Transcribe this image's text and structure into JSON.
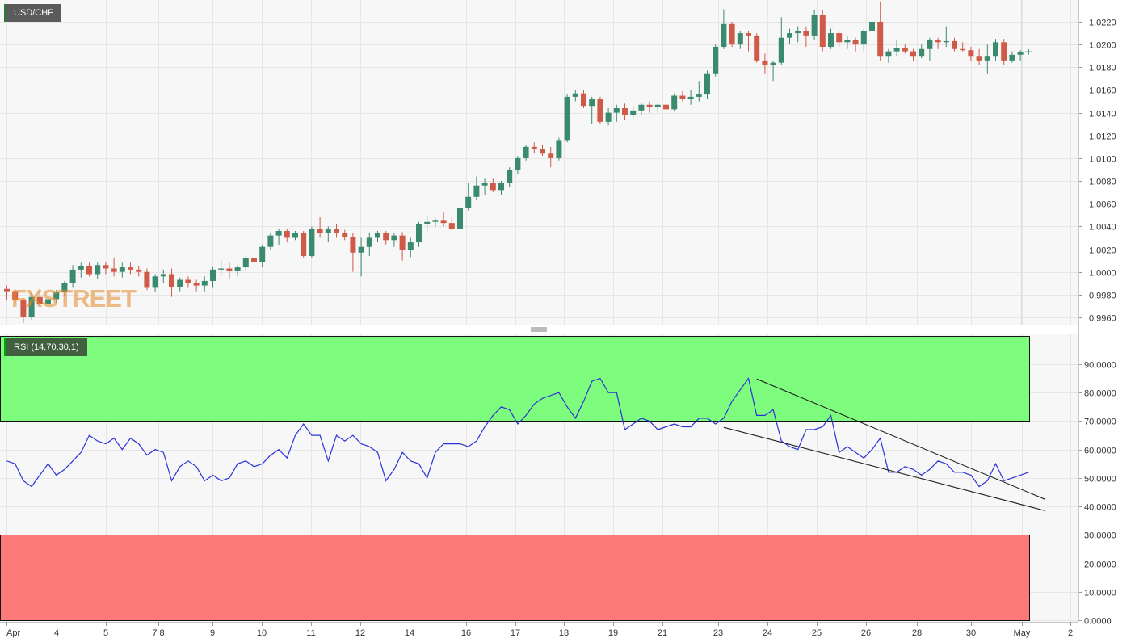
{
  "symbol": "USD/CHF",
  "watermark": "FXSTREET",
  "rsi_label": "RSI (14,70,30,1)",
  "colors": {
    "bull": "#3a8a6f",
    "bear": "#d05a48",
    "rsi_line": "#2b33d6",
    "overbought_zone": "#7dfc7d",
    "oversold_zone": "#fc7a7a",
    "trendline": "#222222",
    "grid": "#e6e6e6"
  },
  "chart_data": [
    {
      "type": "candlestick",
      "title": "USD/CHF",
      "ylim": [
        0.995,
        1.0238
      ],
      "y_ticks": [
        "0.9960",
        "0.9980",
        "1.0000",
        "1.0020",
        "1.0040",
        "1.0060",
        "1.0080",
        "1.0100",
        "1.0120",
        "1.0140",
        "1.0160",
        "1.0180",
        "1.0200",
        "1.0220"
      ],
      "x_ticks": [
        "Apr",
        "4",
        "5",
        "7 8",
        "9",
        "10",
        "11",
        "12",
        "14",
        "16",
        "17",
        "18",
        "19",
        "21",
        "23",
        "24",
        "25",
        "26",
        "28",
        "30",
        "May",
        "2"
      ],
      "grid": true,
      "ohlc": [
        [
          0.9985,
          0.9988,
          0.9975,
          0.9983
        ],
        [
          0.9983,
          0.9985,
          0.9972,
          0.9975
        ],
        [
          0.9975,
          0.9977,
          0.9955,
          0.996
        ],
        [
          0.996,
          0.9982,
          0.9958,
          0.9978
        ],
        [
          0.9978,
          0.9986,
          0.997,
          0.9972
        ],
        [
          0.9972,
          0.998,
          0.9968,
          0.9976
        ],
        [
          0.9976,
          0.9984,
          0.9973,
          0.9982
        ],
        [
          0.9982,
          0.9992,
          0.9978,
          0.999
        ],
        [
          0.999,
          1.0006,
          0.9986,
          1.0002
        ],
        [
          1.0002,
          1.0008,
          0.9995,
          1.0005
        ],
        [
          1.0005,
          1.0008,
          0.9996,
          0.9998
        ],
        [
          0.9998,
          1.0008,
          0.9994,
          1.0006
        ],
        [
          1.0006,
          1.0009,
          0.9998,
          1.0003
        ],
        [
          1.0003,
          1.0012,
          0.9996,
          1.0
        ],
        [
          1.0,
          1.0008,
          0.9995,
          1.0004
        ],
        [
          1.0004,
          1.0008,
          0.9998,
          1.0002
        ],
        [
          1.0002,
          1.0005,
          0.9996,
          1.0
        ],
        [
          1.0,
          1.0003,
          0.9984,
          0.9986
        ],
        [
          0.9986,
          0.9998,
          0.9982,
          0.9996
        ],
        [
          0.9996,
          1.0002,
          0.999,
          0.9998
        ],
        [
          0.9998,
          1.0003,
          0.9978,
          0.9987
        ],
        [
          0.9987,
          0.9995,
          0.9983,
          0.9993
        ],
        [
          0.9993,
          0.9996,
          0.9986,
          0.999
        ],
        [
          0.999,
          0.9993,
          0.9983,
          0.9988
        ],
        [
          0.9988,
          0.9996,
          0.9983,
          0.9992
        ],
        [
          0.9992,
          1.0004,
          0.9986,
          1.0002
        ],
        [
          1.0002,
          1.001,
          0.9997,
          1.0003
        ],
        [
          1.0003,
          1.0008,
          0.9994,
          1.0001
        ],
        [
          1.0001,
          1.0006,
          0.9996,
          1.0004
        ],
        [
          1.0004,
          1.0014,
          1.0001,
          1.0012
        ],
        [
          1.0012,
          1.002,
          1.0006,
          1.0009
        ],
        [
          1.0009,
          1.0024,
          1.0004,
          1.0022
        ],
        [
          1.0022,
          1.0034,
          1.0019,
          1.0032
        ],
        [
          1.0032,
          1.0038,
          1.0024,
          1.0036
        ],
        [
          1.0036,
          1.0038,
          1.0026,
          1.003
        ],
        [
          1.003,
          1.0036,
          1.0028,
          1.0034
        ],
        [
          1.0034,
          1.0036,
          1.0012,
          1.0014
        ],
        [
          1.0014,
          1.004,
          1.0012,
          1.0038
        ],
        [
          1.0038,
          1.0048,
          1.003,
          1.0034
        ],
        [
          1.0034,
          1.004,
          1.0026,
          1.0038
        ],
        [
          1.0038,
          1.0042,
          1.003,
          1.0034
        ],
        [
          1.0034,
          1.0037,
          1.0028,
          1.0031
        ],
        [
          1.0031,
          1.0034,
          1.0,
          1.0017
        ],
        [
          1.0017,
          1.003,
          0.9996,
          1.0022
        ],
        [
          1.0022,
          1.0034,
          1.0014,
          1.003
        ],
        [
          1.003,
          1.0036,
          1.0026,
          1.0034
        ],
        [
          1.0034,
          1.0036,
          1.0024,
          1.0028
        ],
        [
          1.0028,
          1.0034,
          1.0022,
          1.0032
        ],
        [
          1.0032,
          1.0035,
          1.001,
          1.0019
        ],
        [
          1.0019,
          1.003,
          1.0013,
          1.0026
        ],
        [
          1.0026,
          1.0044,
          1.0022,
          1.0042
        ],
        [
          1.0042,
          1.005,
          1.0036,
          1.0044
        ],
        [
          1.0044,
          1.0047,
          1.004,
          1.0045
        ],
        [
          1.0045,
          1.0053,
          1.004,
          1.0043
        ],
        [
          1.0043,
          1.0048,
          1.0036,
          1.0038
        ],
        [
          1.0038,
          1.0058,
          1.0035,
          1.0056
        ],
        [
          1.0056,
          1.0078,
          1.0054,
          1.0066
        ],
        [
          1.0066,
          1.0084,
          1.0063,
          1.0076
        ],
        [
          1.0076,
          1.0082,
          1.0068,
          1.0078
        ],
        [
          1.0078,
          1.0082,
          1.007,
          1.0072
        ],
        [
          1.0072,
          1.008,
          1.0068,
          1.0078
        ],
        [
          1.0078,
          1.0092,
          1.0075,
          1.009
        ],
        [
          1.009,
          1.0102,
          1.0086,
          1.01
        ],
        [
          1.01,
          1.0112,
          1.0098,
          1.011
        ],
        [
          1.011,
          1.0114,
          1.0104,
          1.0108
        ],
        [
          1.0108,
          1.0112,
          1.0102,
          1.0104
        ],
        [
          1.0104,
          1.011,
          1.0092,
          1.01
        ],
        [
          1.01,
          1.0118,
          1.0098,
          1.0116
        ],
        [
          1.0116,
          1.0156,
          1.0114,
          1.0154
        ],
        [
          1.0154,
          1.016,
          1.015,
          1.0157
        ],
        [
          1.0157,
          1.016,
          1.0144,
          1.0146
        ],
        [
          1.0146,
          1.0154,
          1.013,
          1.0152
        ],
        [
          1.0152,
          1.0154,
          1.013,
          1.0132
        ],
        [
          1.0132,
          1.0144,
          1.0129,
          1.014
        ],
        [
          1.014,
          1.0147,
          1.0132,
          1.0144
        ],
        [
          1.0144,
          1.0148,
          1.0134,
          1.0138
        ],
        [
          1.0138,
          1.0146,
          1.0135,
          1.0142
        ],
        [
          1.0142,
          1.0149,
          1.0138,
          1.0147
        ],
        [
          1.0147,
          1.015,
          1.014,
          1.0145
        ],
        [
          1.0145,
          1.0149,
          1.014,
          1.0147
        ],
        [
          1.0147,
          1.015,
          1.0141,
          1.0143
        ],
        [
          1.0143,
          1.0157,
          1.0141,
          1.0155
        ],
        [
          1.0155,
          1.0159,
          1.015,
          1.0152
        ],
        [
          1.0152,
          1.016,
          1.0147,
          1.0154
        ],
        [
          1.0154,
          1.0168,
          1.015,
          1.0156
        ],
        [
          1.0156,
          1.0177,
          1.0152,
          1.0174
        ],
        [
          1.0174,
          1.02,
          1.0172,
          1.0198
        ],
        [
          1.0198,
          1.0231,
          1.0196,
          1.0218
        ],
        [
          1.0218,
          1.022,
          1.0198,
          1.02
        ],
        [
          1.02,
          1.0212,
          1.0196,
          1.021
        ],
        [
          1.021,
          1.0212,
          1.0194,
          1.0208
        ],
        [
          1.0208,
          1.021,
          1.0184,
          1.0186
        ],
        [
          1.0186,
          1.0192,
          1.0174,
          1.0182
        ],
        [
          1.0182,
          1.0186,
          1.0168,
          1.0184
        ],
        [
          1.0184,
          1.0224,
          1.0182,
          1.0206
        ],
        [
          1.0206,
          1.0214,
          1.02,
          1.021
        ],
        [
          1.021,
          1.0216,
          1.0202,
          1.0212
        ],
        [
          1.0212,
          1.0216,
          1.0198,
          1.0208
        ],
        [
          1.0208,
          1.023,
          1.0204,
          1.0226
        ],
        [
          1.0226,
          1.023,
          1.0194,
          1.0198
        ],
        [
          1.0198,
          1.0214,
          1.0196,
          1.021
        ],
        [
          1.021,
          1.0212,
          1.0198,
          1.0202
        ],
        [
          1.0202,
          1.0208,
          1.0196,
          1.0204
        ],
        [
          1.0204,
          1.0206,
          1.0194,
          1.02
        ],
        [
          1.02,
          1.0214,
          1.0194,
          1.0212
        ],
        [
          1.0212,
          1.0224,
          1.0208,
          1.022
        ],
        [
          1.022,
          1.0238,
          1.0186,
          1.019
        ],
        [
          1.019,
          1.0196,
          1.0184,
          1.0194
        ],
        [
          1.0194,
          1.0204,
          1.019,
          1.0197
        ],
        [
          1.0197,
          1.02,
          1.0192,
          1.0194
        ],
        [
          1.0194,
          1.0196,
          1.0186,
          1.019
        ],
        [
          1.019,
          1.02,
          1.0188,
          1.0196
        ],
        [
          1.0196,
          1.0206,
          1.0186,
          1.0204
        ],
        [
          1.0204,
          1.0206,
          1.0196,
          1.0202
        ],
        [
          1.0202,
          1.0216,
          1.0198,
          1.0203
        ],
        [
          1.0203,
          1.0206,
          1.0194,
          1.0196
        ],
        [
          1.0196,
          1.0202,
          1.0194,
          1.0195
        ],
        [
          1.0195,
          1.0198,
          1.0186,
          1.019
        ],
        [
          1.019,
          1.0196,
          1.0182,
          1.0186
        ],
        [
          1.0186,
          1.02,
          1.0174,
          1.019
        ],
        [
          1.019,
          1.0205,
          1.0186,
          1.0202
        ],
        [
          1.0202,
          1.0205,
          1.0182,
          1.0186
        ],
        [
          1.0186,
          1.0194,
          1.0184,
          1.0191
        ],
        [
          1.0191,
          1.0195,
          1.0186,
          1.0193
        ],
        [
          1.0193,
          1.0196,
          1.0191,
          1.0194
        ]
      ]
    },
    {
      "type": "line",
      "title": "RSI (14,70,30,1)",
      "ylim": [
        0,
        100
      ],
      "y_ticks": [
        "0.0000",
        "10.0000",
        "20.0000",
        "30.0000",
        "40.0000",
        "50.0000",
        "60.0000",
        "70.0000",
        "80.0000",
        "90.0000"
      ],
      "levels": {
        "overbought": 70,
        "oversold": 30
      },
      "grid": true,
      "series": [
        {
          "values": [
            56,
            55,
            49,
            47,
            51,
            55,
            51,
            53,
            56,
            59,
            65,
            63,
            62,
            64,
            60,
            64,
            62,
            58,
            60,
            59,
            49,
            54,
            56,
            54,
            49,
            51,
            49,
            50,
            55,
            56,
            54,
            55,
            58,
            60,
            57,
            65,
            69,
            65,
            65,
            56,
            65,
            63,
            65,
            62,
            61,
            59,
            49,
            53,
            59,
            56,
            55,
            50,
            59,
            62,
            62,
            62,
            61,
            63,
            68,
            72,
            75,
            74,
            69,
            72,
            76,
            78,
            79,
            80,
            75,
            71,
            77,
            84,
            85,
            80,
            80,
            67,
            69,
            71,
            70,
            67,
            68,
            69,
            68,
            68,
            71,
            71,
            69,
            71,
            77,
            81,
            85,
            72,
            72,
            74,
            63,
            61,
            60,
            67,
            67,
            68,
            72,
            59,
            61,
            59,
            57,
            60,
            64,
            52,
            52,
            54,
            53,
            51,
            53,
            56,
            55,
            52,
            52,
            51,
            47,
            49,
            55,
            49,
            50,
            51,
            52
          ]
        }
      ],
      "trendlines": [
        {
          "from": [
            91,
            84.8
          ],
          "to": [
            126,
            42.5
          ]
        },
        {
          "from": [
            87,
            67.8
          ],
          "to": [
            126,
            38.5
          ]
        }
      ]
    }
  ]
}
